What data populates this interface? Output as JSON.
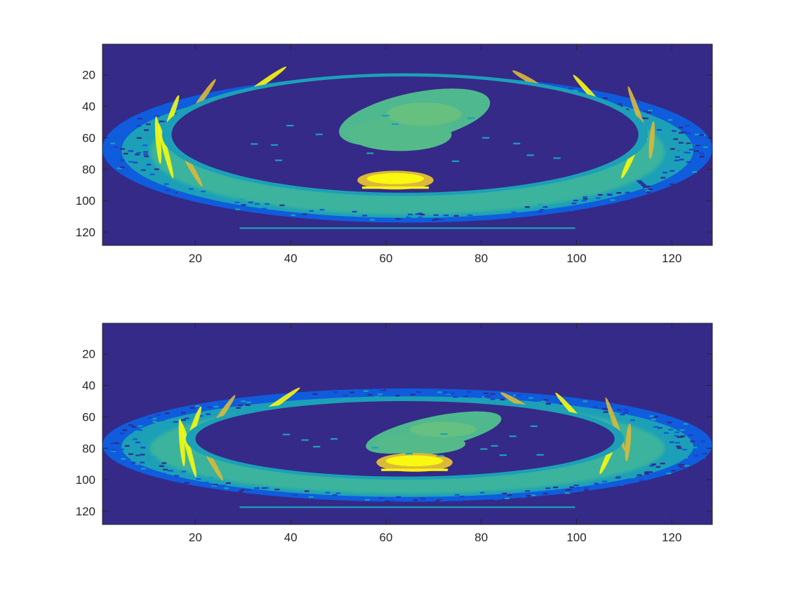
{
  "chart_data": [
    {
      "type": "heatmap",
      "title": "",
      "xlabel": "",
      "ylabel": "",
      "xlim": [
        0.5,
        128.5
      ],
      "ylim": [
        0.5,
        128.5
      ],
      "y_reversed": true,
      "colormap": "parula",
      "grid": false,
      "xticks": [
        20,
        40,
        60,
        80,
        100,
        120
      ],
      "xtick_labels": [
        "20",
        "40",
        "60",
        "80",
        "100",
        "120"
      ],
      "yticks": [
        20,
        40,
        60,
        80,
        100,
        120
      ],
      "ytick_labels": [
        "20",
        "40",
        "60",
        "80",
        "100",
        "120"
      ],
      "image_description": "axial chest CT slice: outer body ring with scattered low values, bright ribs and spine, mid-level mediastinum in centre, dark lungs",
      "body_center": [
        64.5,
        67
      ],
      "body_semi_axes": [
        64,
        47
      ],
      "lung_center": [
        64,
        58
      ],
      "lung_semi_axes": [
        49,
        37
      ],
      "mediastinum_center": [
        66,
        47
      ],
      "spine_center": [
        62,
        87
      ]
    },
    {
      "type": "heatmap",
      "title": "",
      "xlabel": "",
      "ylabel": "",
      "xlim": [
        0.5,
        128.5
      ],
      "ylim": [
        0.5,
        128.5
      ],
      "y_reversed": true,
      "colormap": "parula",
      "grid": false,
      "xticks": [
        20,
        40,
        60,
        80,
        100,
        120
      ],
      "xtick_labels": [
        "20",
        "40",
        "60",
        "80",
        "100",
        "120"
      ],
      "yticks": [
        20,
        40,
        60,
        80,
        100,
        120
      ],
      "ytick_labels": [
        "20",
        "40",
        "60",
        "80",
        "100",
        "120"
      ],
      "image_description": "compressed axial chest CT slice: flattened body ring, bright spine lower centre, mediastinum band, dark lungs",
      "body_center": [
        64.5,
        78
      ],
      "body_semi_axes": [
        64,
        36
      ],
      "lung_center": [
        64,
        74
      ],
      "lung_semi_axes": [
        44,
        24
      ],
      "mediastinum_center": [
        70,
        70
      ],
      "spine_center": [
        66,
        89
      ]
    }
  ],
  "colors": {
    "background": "#352a87",
    "low": "#0f5cdd",
    "mid": "#1ca0b8",
    "highmid": "#7ec76c",
    "high": "#dcb83a",
    "peak": "#f9f80e"
  }
}
